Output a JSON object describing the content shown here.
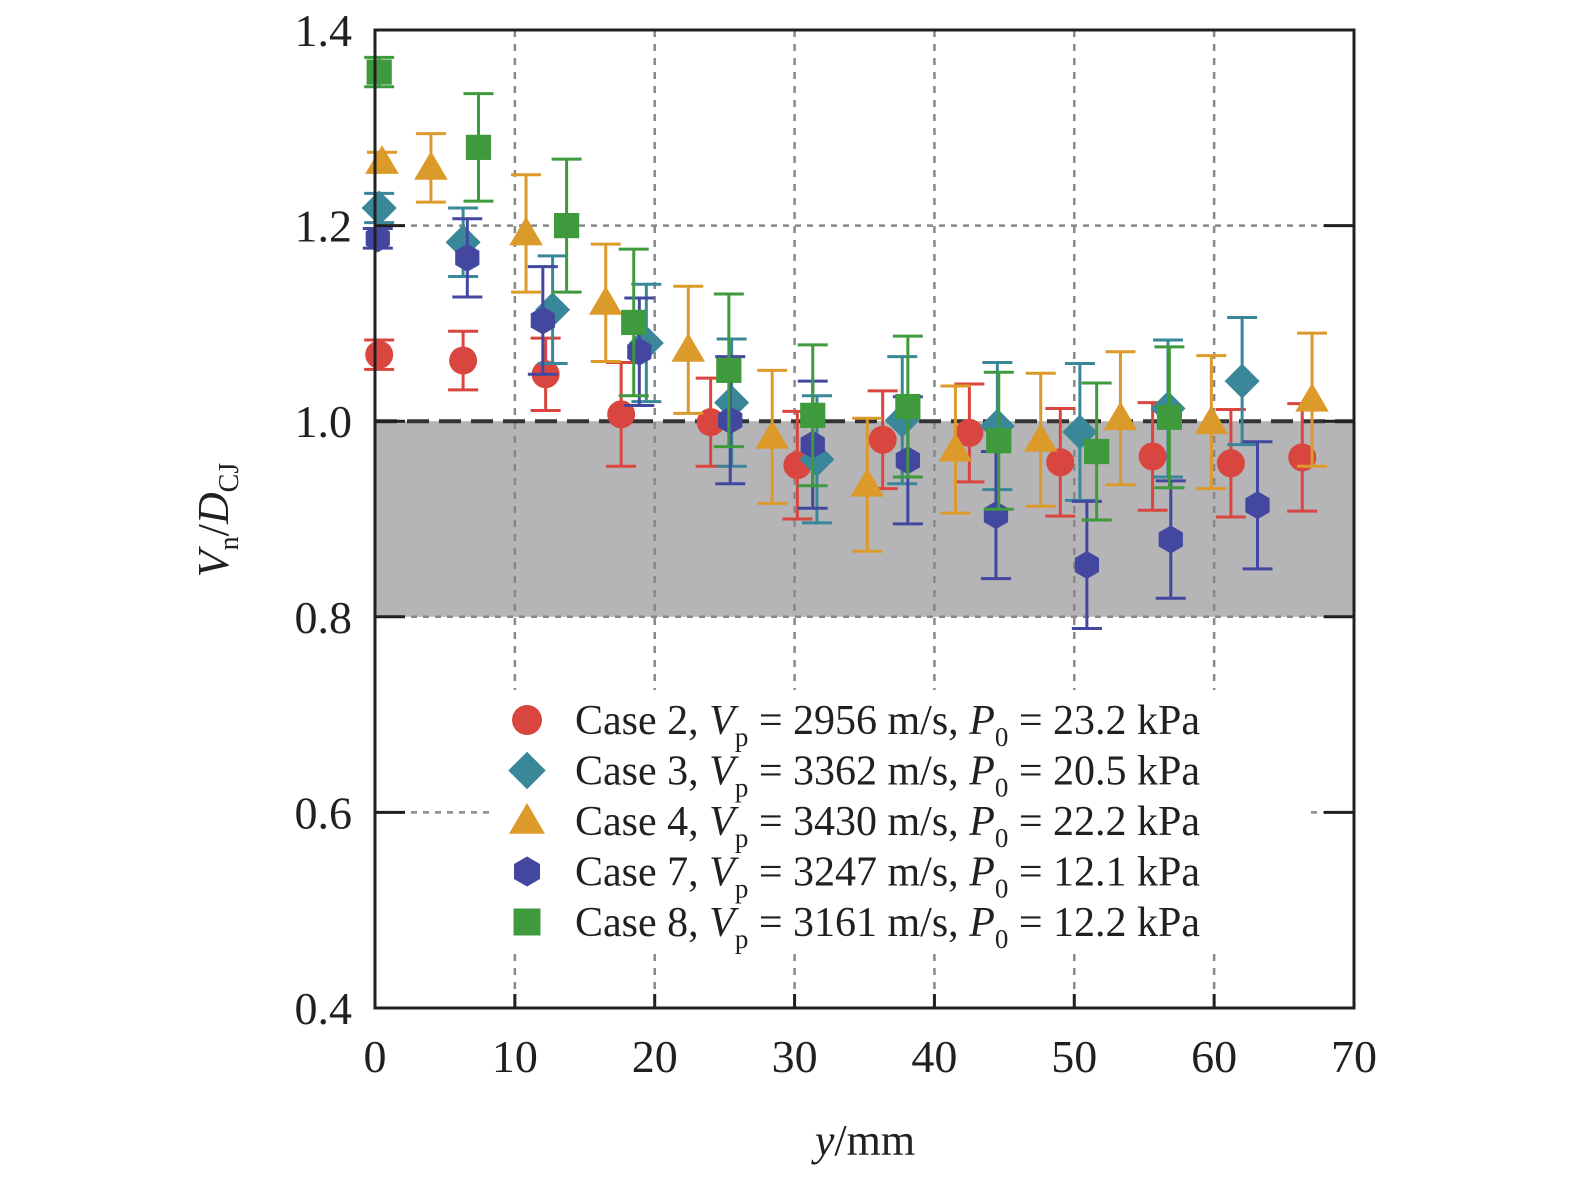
{
  "chart_data": {
    "type": "scatter",
    "title": "",
    "xlabel": {
      "var": "y",
      "unit": "/mm"
    },
    "ylabel": {
      "num": "V",
      "num_sub": "n",
      "slash": "/",
      "den": "D",
      "den_sub": "CJ"
    },
    "xlim": [
      0,
      70
    ],
    "ylim": [
      0.4,
      1.4
    ],
    "xticks": [
      "0",
      "10",
      "20",
      "30",
      "40",
      "50",
      "60",
      "70"
    ],
    "yticks": [
      "0.4",
      "0.6",
      "0.8",
      "1.0",
      "1.2",
      "1.4"
    ],
    "grid": true,
    "shaded_band": {
      "y_from": 0.8,
      "y_to": 1.0,
      "color": "#b5b4b6"
    },
    "reference_line": 1.0,
    "legend_position": "bottom-right",
    "legend_symbols": {
      "v": "V",
      "v_sub": "p",
      "p": "P",
      "p_sub": "0"
    },
    "series": [
      {
        "name": "Case 2",
        "vp": "2956 m/s",
        "p0": "23.2 kPa",
        "marker": "circle",
        "color": "#d9463f",
        "x": [
          0.3,
          6.3,
          12.2,
          17.6,
          24.0,
          30.2,
          36.3,
          42.5,
          49.0,
          55.6,
          61.2,
          66.3
        ],
        "y": [
          1.068,
          1.062,
          1.048,
          1.007,
          0.999,
          0.955,
          0.981,
          0.988,
          0.958,
          0.964,
          0.957,
          0.963
        ],
        "err": [
          0.015,
          0.03,
          0.037,
          0.053,
          0.045,
          0.055,
          0.05,
          0.05,
          0.055,
          0.055,
          0.055,
          0.055
        ]
      },
      {
        "name": "Case 3",
        "vp": "3362 m/s",
        "p0": "20.5 kPa",
        "marker": "diamond",
        "color": "#3a8799",
        "x": [
          0.3,
          6.3,
          12.7,
          19.4,
          25.5,
          31.6,
          37.7,
          44.5,
          50.4,
          56.7,
          62.0
        ],
        "y": [
          1.218,
          1.183,
          1.114,
          1.08,
          1.019,
          0.961,
          1.001,
          0.995,
          0.989,
          1.013,
          1.041
        ],
        "err": [
          0.015,
          0.035,
          0.055,
          0.06,
          0.065,
          0.065,
          0.065,
          0.065,
          0.07,
          0.07,
          0.065
        ]
      },
      {
        "name": "Case 4",
        "vp": "3430 m/s",
        "p0": "22.2 kPa",
        "marker": "triangle",
        "color": "#dc9a2b",
        "x": [
          0.5,
          4.0,
          10.8,
          16.5,
          22.4,
          28.4,
          35.2,
          41.5,
          47.6,
          53.3,
          59.8,
          67.0
        ],
        "y": [
          1.265,
          1.259,
          1.192,
          1.121,
          1.073,
          0.984,
          0.935,
          0.971,
          0.981,
          1.003,
          0.999,
          1.022
        ],
        "err": [
          0.01,
          0.035,
          0.06,
          0.06,
          0.065,
          0.068,
          0.068,
          0.065,
          0.068,
          0.068,
          0.068,
          0.068
        ]
      },
      {
        "name": "Case 7",
        "vp": "3247 m/s",
        "p0": "12.1 kPa",
        "marker": "hexagon",
        "color": "#4347a0",
        "x": [
          0.2,
          6.6,
          12.0,
          18.9,
          25.4,
          31.3,
          38.1,
          44.4,
          50.9,
          56.9,
          63.1
        ],
        "y": [
          1.187,
          1.167,
          1.103,
          1.071,
          1.001,
          0.976,
          0.96,
          0.904,
          0.853,
          0.879,
          0.914
        ],
        "err": [
          0.01,
          0.04,
          0.055,
          0.055,
          0.065,
          0.065,
          0.065,
          0.065,
          0.065,
          0.06,
          0.065
        ]
      },
      {
        "name": "Case 8",
        "vp": "3161 m/s",
        "p0": "12.2 kPa",
        "marker": "square",
        "color": "#3f9a3e",
        "x": [
          0.3,
          7.4,
          13.7,
          18.5,
          25.3,
          31.3,
          38.1,
          44.6,
          51.6,
          56.8
        ],
        "y": [
          1.357,
          1.28,
          1.2,
          1.101,
          1.052,
          1.006,
          1.015,
          0.98,
          0.969,
          1.004
        ],
        "err": [
          0.015,
          0.055,
          0.068,
          0.075,
          0.078,
          0.072,
          0.072,
          0.07,
          0.07,
          0.072
        ]
      }
    ]
  }
}
